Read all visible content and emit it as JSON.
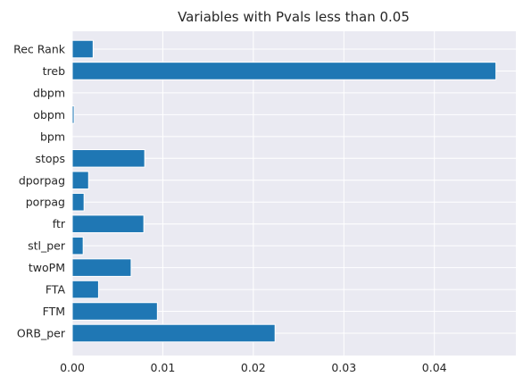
{
  "chart_data": {
    "type": "bar",
    "orientation": "horizontal",
    "title": "Variables with Pvals less than 0.05",
    "xlabel": "",
    "ylabel": "",
    "xlim": [
      0,
      0.049
    ],
    "x_ticks": [
      "0.00",
      "0.01",
      "0.02",
      "0.03",
      "0.04"
    ],
    "x_tick_values": [
      0,
      0.01,
      0.02,
      0.03,
      0.04
    ],
    "categories": [
      "Rec Rank",
      "treb",
      "dbpm",
      "obpm",
      "bpm",
      "stops",
      "dporpag",
      "porpag",
      "ftr",
      "stl_per",
      "twoPM",
      "FTA",
      "FTM",
      "ORB_per"
    ],
    "values": [
      0.0023,
      0.0468,
      0.0,
      0.0002,
      0.0,
      0.008,
      0.0018,
      0.0013,
      0.0079,
      0.0012,
      0.0065,
      0.0029,
      0.0094,
      0.0224
    ],
    "bar_color": "#1f77b4",
    "background_color": "#eaeaf2",
    "grid": true,
    "legend": "none"
  }
}
